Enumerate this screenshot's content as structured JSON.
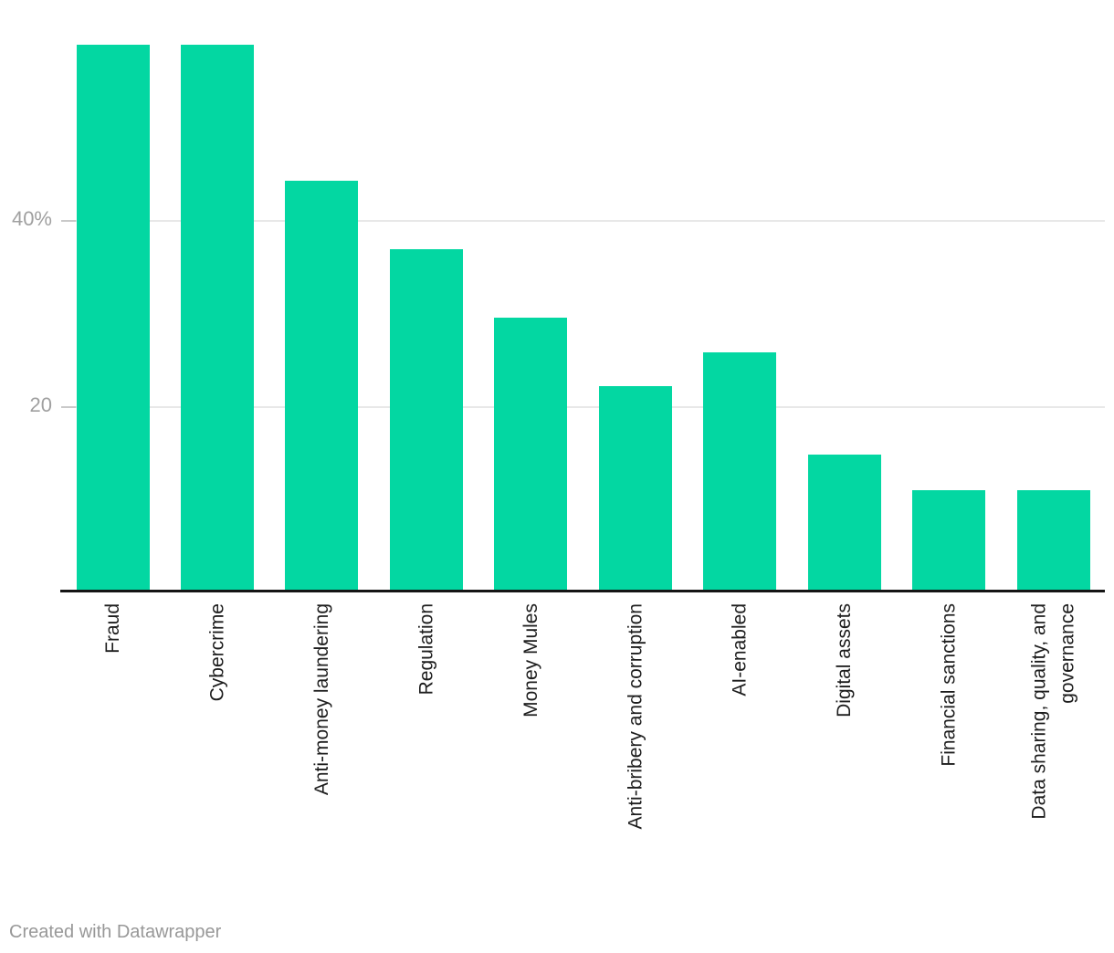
{
  "chart_data": {
    "type": "bar",
    "title": "",
    "xlabel": "",
    "ylabel": "",
    "categories": [
      "Fraud",
      "Cybercrime",
      "Anti-money laundering",
      "Regulation",
      "Money Mules",
      "Anti-bribery and corruption",
      "AI-enabled",
      "Digital assets",
      "Financial sanctions",
      "Data sharing, quality, and\ngovernance"
    ],
    "values": [
      59,
      59,
      44.3,
      37,
      29.6,
      22.2,
      25.9,
      14.8,
      11,
      11
    ],
    "value_unit": "%",
    "ylim": [
      0,
      60
    ],
    "y_ticks": [
      {
        "value": 20,
        "label": "20"
      },
      {
        "value": 40,
        "label": "40%"
      }
    ],
    "grid": "horizontal",
    "legend": "none",
    "bar_color": "#03d7a2"
  },
  "footer": {
    "credit_label": "Created with Datawrapper"
  },
  "colors": {
    "background": "#ffffff",
    "bar": "#03d7a2",
    "axis_line": "#151515",
    "gridline": "#e8e8e8",
    "tick": "#c9c9c9",
    "tick_label": "#a0a0a0",
    "category_label": "#1d1d1d",
    "credit": "#989898"
  }
}
